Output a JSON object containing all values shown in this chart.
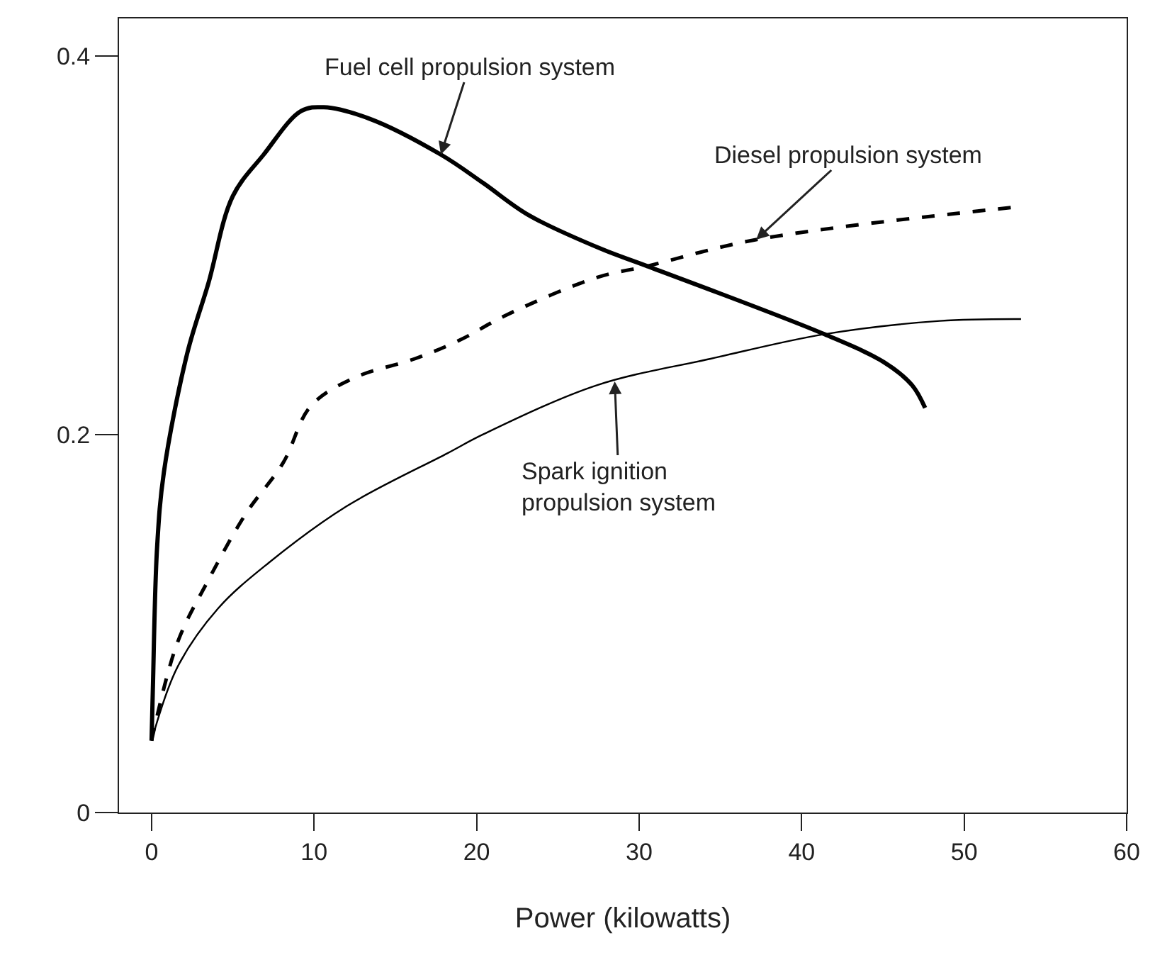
{
  "chart_data": {
    "type": "line",
    "xlabel": "Power (kilowatts)",
    "xlim": [
      -2,
      60
    ],
    "ylim": [
      0,
      0.42
    ],
    "xticks": [
      0,
      10,
      20,
      30,
      40,
      50,
      60
    ],
    "yticks": [
      0,
      0.2,
      0.4
    ],
    "marker": "none",
    "series": [
      {
        "color": "#000000",
        "line_style": "solid",
        "x": [
          0,
          0.08,
          0.34,
          0.76,
          2.2,
          3.5,
          5.0,
          6.9,
          9.2,
          10.6,
          13.4,
          17.8,
          20.4,
          23.2,
          27.7,
          30.5,
          41.4,
          45.1,
          46.8,
          47.6
        ],
        "values": [
          0.038,
          0.065,
          0.14,
          0.18,
          0.243,
          0.28,
          0.326,
          0.348,
          0.371,
          0.373,
          0.367,
          0.348,
          0.333,
          0.316,
          0.298,
          0.289,
          0.253,
          0.238,
          0.226,
          0.214
        ]
      },
      {
        "color": "#000000",
        "line_style": "dashed",
        "x": [
          0,
          1.6,
          3.5,
          5.8,
          8.1,
          9.8,
          12.5,
          16.2,
          19.0,
          21.8,
          27.4,
          30.5,
          37.2,
          52.9
        ],
        "values": [
          0.038,
          0.09,
          0.123,
          0.158,
          0.185,
          0.215,
          0.23,
          0.24,
          0.25,
          0.263,
          0.283,
          0.289,
          0.303,
          0.32
        ]
      },
      {
        "color": "#000000",
        "line_style": "solid",
        "x": [
          0,
          1.6,
          4.1,
          7.2,
          12.0,
          18.2,
          20.4,
          27.4,
          34.4,
          41.4,
          48.5,
          53.5
        ],
        "values": [
          0.038,
          0.077,
          0.108,
          0.132,
          0.162,
          0.19,
          0.2,
          0.226,
          0.24,
          0.253,
          0.26,
          0.261
        ]
      }
    ],
    "annotations": [
      {
        "text": "Fuel cell propulsion system",
        "x": 17.8,
        "y": 0.348
      },
      {
        "text": "Diesel propulsion system",
        "x": 37.2,
        "y": 0.303
      },
      {
        "text": "Spark ignition\npropulsion system",
        "x": 28.5,
        "y": 0.228
      }
    ]
  }
}
